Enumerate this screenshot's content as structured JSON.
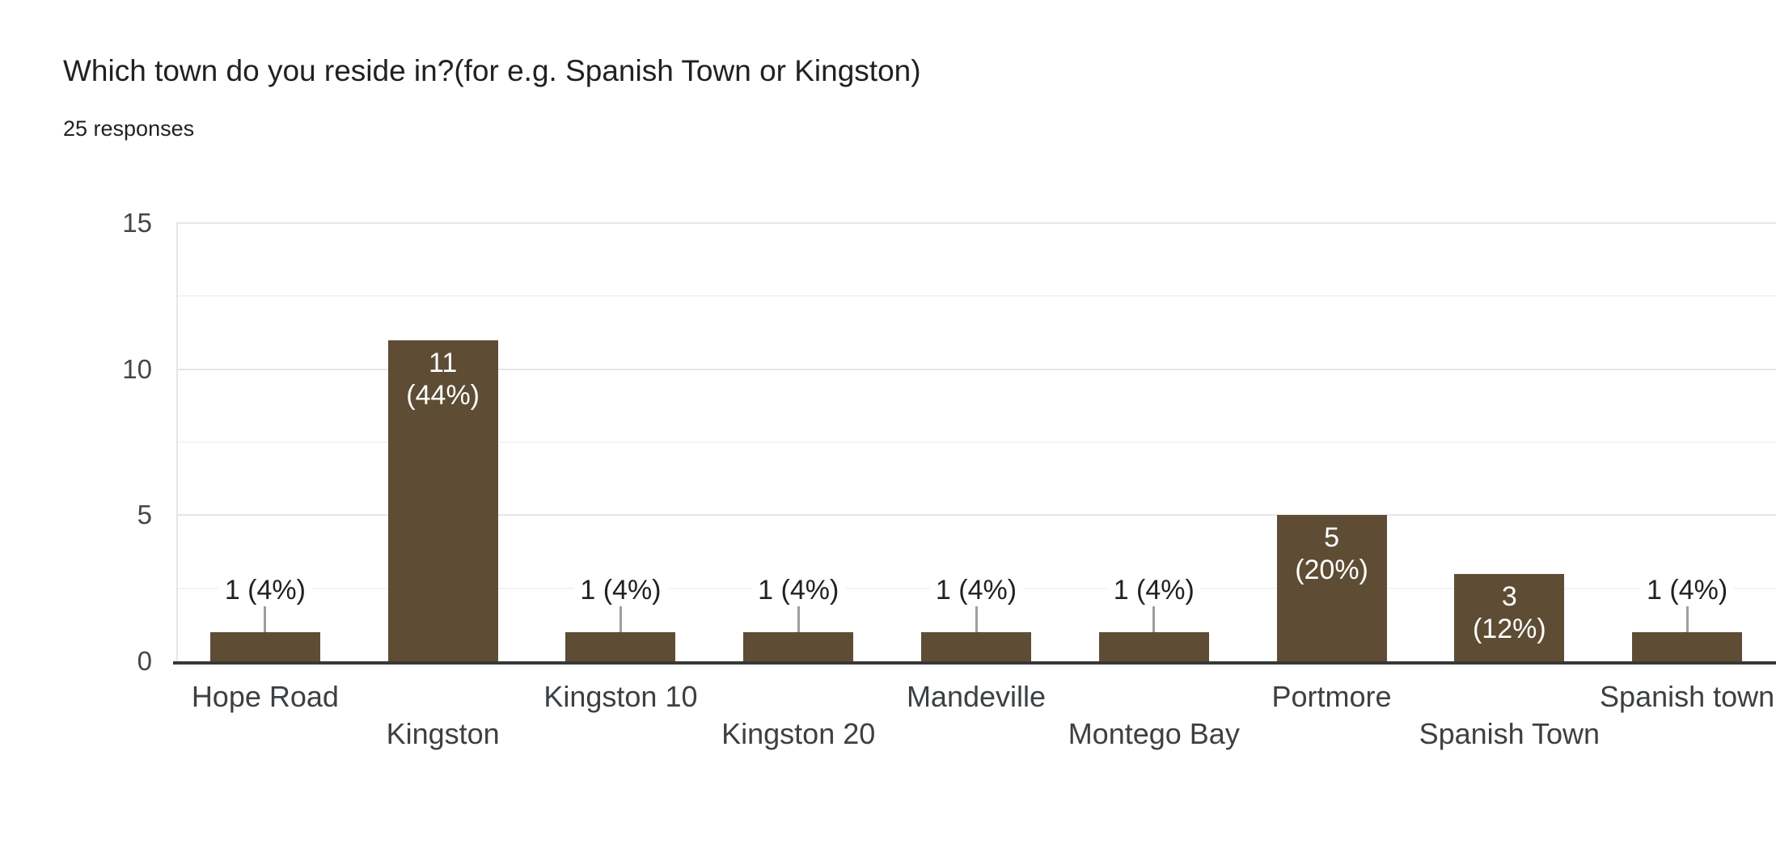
{
  "chart_data": {
    "type": "bar",
    "title": "Which town do you reside in?(for e.g. Spanish Town or Kingston)",
    "subtitle": "25 responses",
    "categories": [
      "Hope Road",
      "Kingston",
      "Kingston 10",
      "Kingston 20",
      "Mandeville",
      "Montego Bay",
      "Portmore",
      "Spanish Town",
      "Spanish town"
    ],
    "values": [
      1,
      11,
      1,
      1,
      1,
      1,
      5,
      3,
      1
    ],
    "percent_labels": [
      "(4%)",
      "(44%)",
      "(4%)",
      "(4%)",
      "(4%)",
      "(4%)",
      "(20%)",
      "(12%)",
      "(4%)"
    ],
    "xlabel": "",
    "ylabel": "",
    "ylim": [
      0,
      15
    ],
    "yticks": [
      0,
      5,
      10,
      15
    ],
    "major_gridlines": [
      5,
      10,
      15
    ],
    "minor_gridlines": [
      2.5,
      7.5,
      12.5
    ],
    "grid": "horizontal",
    "legend": "none",
    "inside_label_min_value": 3,
    "colors": {
      "background": "#ffffff",
      "bar": "#5e4d34",
      "title": "#202124",
      "subtitle": "#202124",
      "ytick_label": "#444746",
      "xtick_label": "#3c4043",
      "major_gridline": "#e6e6e6",
      "minor_gridline": "#f3f3f3",
      "baseline": "#383838",
      "connector": "#9e9e9e",
      "outside_label_text": "#212121",
      "outside_label_bg": "#ffffff",
      "inside_label_text": "#ffffff"
    }
  }
}
